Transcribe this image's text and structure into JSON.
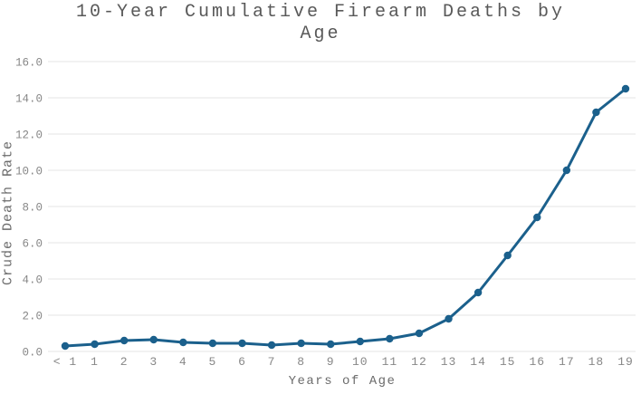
{
  "colors": {
    "line": "#1b608c",
    "marker": "#1b608c",
    "grid": "#e4e4e4",
    "title_text": "#595959",
    "axis_title_text": "#6b6b6b",
    "tick_text": "#878787",
    "background": "#ffffff"
  },
  "chart_data": {
    "type": "line",
    "title": "10-Year Cumulative Firearm Deaths by Age",
    "title_lines": [
      "10-Year Cumulative Firearm Deaths by",
      "Age"
    ],
    "xlabel": "Years of Age",
    "ylabel": "Crude Death Rate",
    "categories": [
      "< 1",
      "1",
      "2",
      "3",
      "4",
      "5",
      "6",
      "7",
      "8",
      "9",
      "10",
      "11",
      "12",
      "13",
      "14",
      "15",
      "16",
      "17",
      "18",
      "19"
    ],
    "values": [
      0.3,
      0.4,
      0.6,
      0.65,
      0.5,
      0.45,
      0.45,
      0.35,
      0.45,
      0.4,
      0.55,
      0.7,
      1.0,
      1.8,
      3.25,
      5.3,
      7.4,
      10.0,
      13.2,
      14.5
    ],
    "series": [
      {
        "name": "Crude Death Rate",
        "values": [
          0.3,
          0.4,
          0.6,
          0.65,
          0.5,
          0.45,
          0.45,
          0.35,
          0.45,
          0.4,
          0.55,
          0.7,
          1.0,
          1.8,
          3.25,
          5.3,
          7.4,
          10.0,
          13.2,
          14.5
        ]
      }
    ],
    "ylim": [
      0,
      16
    ],
    "ytick_step": 2,
    "ytick_labels": [
      "0.0",
      "2.0",
      "4.0",
      "6.0",
      "8.0",
      "10.0",
      "12.0",
      "14.0",
      "16.0"
    ],
    "grid": "horizontal",
    "legend": "none",
    "marker": "circle"
  }
}
